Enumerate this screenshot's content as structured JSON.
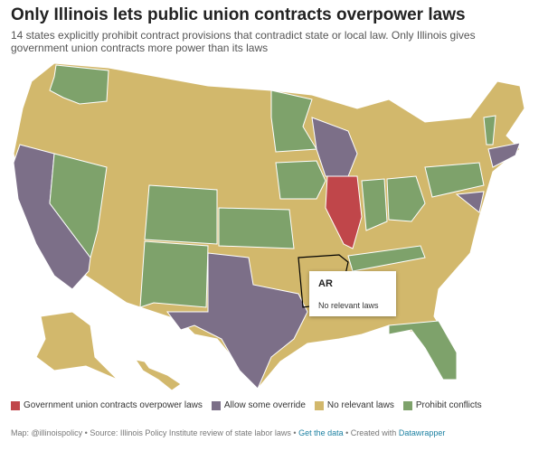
{
  "title": "Only Illinois lets public union contracts overpower laws",
  "subtitle": "14 states explicitly prohibit contract provisions that contradict state or local law. Only Illinois gives government union contracts more power than its laws",
  "tooltip": {
    "state": "AR",
    "text": "No relevant laws"
  },
  "legend": [
    {
      "label": "Government union contracts overpower laws",
      "color": "#c0464a"
    },
    {
      "label": "Allow some override",
      "color": "#7c6f88"
    },
    {
      "label": "No relevant laws",
      "color": "#d2b86c"
    },
    {
      "label": "Prohibit conflicts",
      "color": "#7ea26b"
    }
  ],
  "footer": {
    "source": "Map: @illinoispolicy • Source: Illinois Policy Institute review of state labor laws •",
    "link": "Get the data",
    "created": "• Created with",
    "tool": "Datawrapper"
  }
}
